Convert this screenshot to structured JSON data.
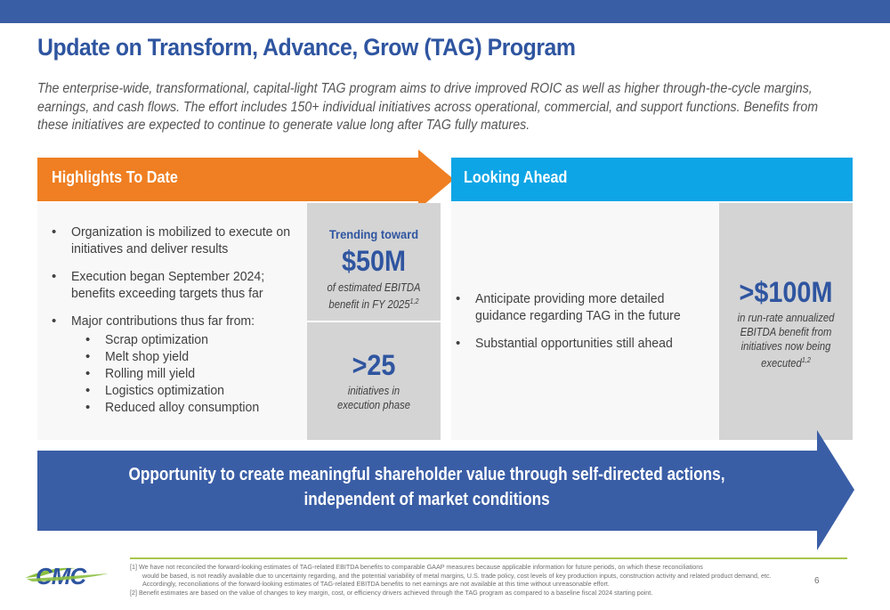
{
  "slide": {
    "title": "Update on Transform, Advance, Grow (TAG) Program",
    "subtitle": "The enterprise-wide, transformational, capital-light TAG program aims to drive improved ROIC as well as higher through-the-cycle margins, earnings, and cash flows.  The effort includes 150+ individual initiatives across operational, commercial, and support functions.  Benefits from these initiatives are expected to continue to generate value long after TAG fully matures.",
    "page_number": "6"
  },
  "highlights": {
    "header": "Highlights To Date",
    "bullets": [
      "Organization is mobilized to execute on initiatives and deliver results",
      "Execution began September 2024; benefits exceeding targets thus far",
      "Major contributions thus far from:"
    ],
    "sub_bullets": [
      "Scrap optimization",
      "Melt shop yield",
      "Rolling mill yield",
      "Logistics optimization",
      "Reduced alloy consumption"
    ],
    "stat1": {
      "kicker": "Trending toward",
      "value": "$50M",
      "desc": "of estimated EBITDA benefit in FY 2025",
      "sup": "1,2"
    },
    "stat2": {
      "value": ">25",
      "desc_line1": "initiatives in",
      "desc_line2": "execution phase"
    }
  },
  "looking_ahead": {
    "header": "Looking Ahead",
    "bullets": [
      "Anticipate providing more detailed guidance regarding TAG in the future",
      "Substantial opportunities still ahead"
    ],
    "stat": {
      "value": ">$100M",
      "desc": "in run-rate annualized EBITDA benefit from initiatives now being executed",
      "sup": "1,2"
    }
  },
  "banner": {
    "line1": "Opportunity to create meaningful shareholder value through self-directed actions,",
    "line2": "independent of market conditions"
  },
  "footnotes": {
    "fn1_line1": "[1] We have not reconciled the forward-looking estimates of TAG-related EBITDA benefits to comparable GAAP measures because applicable information for future periods, on which these reconciliations",
    "fn1_rest": "would be based, is not readily available due to uncertainty regarding, and the potential variability of metal margins, U.S. trade policy, cost levels of key production inputs, construction activity and related product demand, etc. Accordingly, reconciliations of the forward-looking estimates of TAG-related EBITDA benefits to net earnings are not available at this time without unreasonable effort.",
    "fn2": "[2] Benefit estimates are based on the value of changes to key margin, cost, or efficiency drivers achieved through the TAG program as compared to a baseline fiscal 2024 starting point."
  },
  "logo": {
    "text": "CMC"
  },
  "colors": {
    "brand_blue": "#2f55a0",
    "orange": "#ef7f22",
    "cyan": "#0ea5e6",
    "arrow_blue": "#3a5ea6",
    "green": "#a6c64b",
    "gray_box": "#d4d4d4"
  }
}
